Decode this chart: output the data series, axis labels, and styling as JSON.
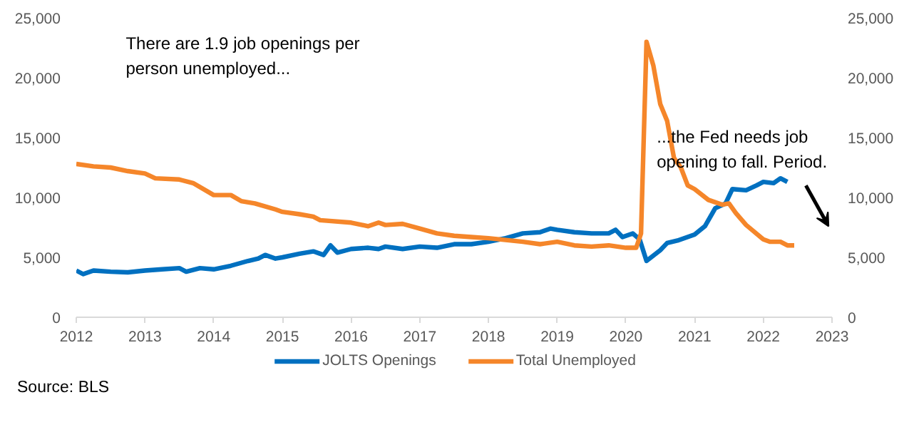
{
  "chart_data": {
    "type": "line",
    "annotations": [
      "There are 1.9 job openings per\nperson unemployed...",
      "...the Fed needs job\nopening to fall. Period.",
      "Source: BLS"
    ],
    "xlim": [
      2012,
      2023
    ],
    "xticks": [
      2012,
      2013,
      2014,
      2015,
      2016,
      2017,
      2018,
      2019,
      2020,
      2021,
      2022,
      2023
    ],
    "ylim": [
      0,
      25000
    ],
    "yticks": [
      {
        "value": 0,
        "label": "0"
      },
      {
        "value": 5000,
        "label": "5,000"
      },
      {
        "value": 10000,
        "label": "10,000"
      },
      {
        "value": 15000,
        "label": "15,000"
      },
      {
        "value": 20000,
        "label": "20,000"
      },
      {
        "value": 25000,
        "label": "25,000"
      }
    ],
    "y2lim": [
      0,
      25000
    ],
    "y2ticks": [
      {
        "value": 0,
        "label": "0"
      },
      {
        "value": 5000,
        "label": "5,000"
      },
      {
        "value": 10000,
        "label": "10,000"
      },
      {
        "value": 15000,
        "label": "15,000"
      },
      {
        "value": 20000,
        "label": "20,000"
      },
      {
        "value": 25000,
        "label": "25,000"
      }
    ],
    "grid": false,
    "legend": "bottom",
    "line_style": "solid",
    "marker": "none",
    "series": [
      {
        "name": "JOLTS Openings",
        "color": "#0070c0",
        "x": [
          2012.0,
          2012.1,
          2012.25,
          2012.5,
          2012.75,
          2013.0,
          2013.25,
          2013.5,
          2013.6,
          2013.8,
          2014.0,
          2014.25,
          2014.5,
          2014.65,
          2014.75,
          2014.9,
          2015.0,
          2015.25,
          2015.45,
          2015.6,
          2015.7,
          2015.8,
          2016.0,
          2016.25,
          2016.4,
          2016.5,
          2016.75,
          2017.0,
          2017.25,
          2017.5,
          2017.75,
          2018.0,
          2018.25,
          2018.5,
          2018.75,
          2018.9,
          2019.0,
          2019.25,
          2019.5,
          2019.75,
          2019.85,
          2019.95,
          2020.1,
          2020.2,
          2020.3,
          2020.5,
          2020.6,
          2020.75,
          2021.0,
          2021.15,
          2021.3,
          2021.45,
          2021.55,
          2021.75,
          2021.9,
          2022.0,
          2022.15,
          2022.25,
          2022.35
        ],
        "values": [
          3900,
          3600,
          3900,
          3800,
          3750,
          3900,
          4000,
          4100,
          3800,
          4100,
          4000,
          4300,
          4700,
          4900,
          5200,
          4900,
          5000,
          5300,
          5500,
          5200,
          6000,
          5400,
          5700,
          5800,
          5700,
          5900,
          5700,
          5900,
          5800,
          6100,
          6100,
          6300,
          6600,
          7000,
          7100,
          7400,
          7300,
          7100,
          7000,
          7000,
          7300,
          6700,
          7000,
          6500,
          4700,
          5600,
          6200,
          6400,
          6900,
          7600,
          9100,
          9500,
          10700,
          10600,
          11000,
          11300,
          11200,
          11600,
          11300
        ]
      },
      {
        "name": "Total Unemployed",
        "color": "#f5862a",
        "x": [
          2012.0,
          2012.25,
          2012.5,
          2012.75,
          2013.0,
          2013.15,
          2013.5,
          2013.7,
          2014.0,
          2014.25,
          2014.4,
          2014.6,
          2014.9,
          2015.0,
          2015.25,
          2015.45,
          2015.55,
          2016.0,
          2016.25,
          2016.4,
          2016.5,
          2016.75,
          2017.0,
          2017.25,
          2017.5,
          2017.75,
          2018.0,
          2018.5,
          2018.75,
          2019.0,
          2019.25,
          2019.5,
          2019.75,
          2020.0,
          2020.15,
          2020.22,
          2020.3,
          2020.4,
          2020.5,
          2020.6,
          2020.7,
          2020.8,
          2020.9,
          2021.0,
          2021.2,
          2021.4,
          2021.5,
          2021.6,
          2021.75,
          2022.0,
          2022.1,
          2022.25,
          2022.35,
          2022.45
        ],
        "values": [
          12800,
          12600,
          12500,
          12200,
          12000,
          11600,
          11500,
          11200,
          10200,
          10200,
          9700,
          9500,
          9000,
          8800,
          8600,
          8400,
          8100,
          7900,
          7600,
          7900,
          7700,
          7800,
          7400,
          7000,
          6800,
          6700,
          6600,
          6300,
          6100,
          6300,
          6000,
          5900,
          6000,
          5800,
          5800,
          7000,
          23000,
          21000,
          17800,
          16400,
          13300,
          12500,
          11000,
          10700,
          9800,
          9400,
          9500,
          8700,
          7700,
          6500,
          6300,
          6300,
          6000,
          6000
        ]
      }
    ]
  }
}
